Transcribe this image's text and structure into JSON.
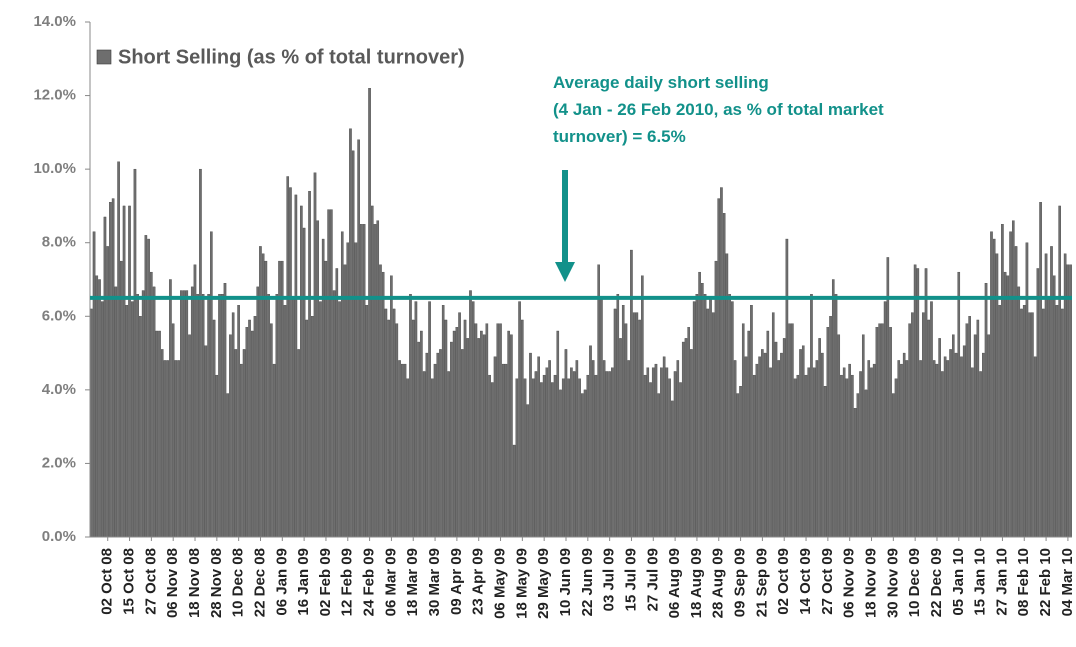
{
  "chart_data": {
    "type": "bar",
    "series": [
      {
        "name": "Short Selling (as % of total turnover)",
        "color": "#6e6e6e",
        "values": [
          6.2,
          8.3,
          7.1,
          7.0,
          6.4,
          8.7,
          7.9,
          9.1,
          9.2,
          6.8,
          10.2,
          7.5,
          9.0,
          6.3,
          9.0,
          6.4,
          10.0,
          6.6,
          6.0,
          6.7,
          8.2,
          8.1,
          7.2,
          6.8,
          5.6,
          5.6,
          5.1,
          4.8,
          4.8,
          7.0,
          5.8,
          4.8,
          4.8,
          6.7,
          6.7,
          6.7,
          5.5,
          6.8,
          7.4,
          6.6,
          10.0,
          6.6,
          5.2,
          6.6,
          8.3,
          5.9,
          4.4,
          6.6,
          6.6,
          6.9,
          3.9,
          5.5,
          6.1,
          5.1,
          6.3,
          4.7,
          5.1,
          5.7,
          5.9,
          5.6,
          6.0,
          6.8,
          7.9,
          7.7,
          7.5,
          6.6,
          5.8,
          4.7,
          6.6,
          7.5,
          7.5,
          6.3,
          9.8,
          9.5,
          6.5,
          9.3,
          5.1,
          9.0,
          8.4,
          5.9,
          9.4,
          6.0,
          9.9,
          8.6,
          6.4,
          8.1,
          7.5,
          8.9,
          8.9,
          6.7,
          7.3,
          6.4,
          8.3,
          7.4,
          8.0,
          11.1,
          10.5,
          8.0,
          10.8,
          8.5,
          8.5,
          6.3,
          12.2,
          9.0,
          8.5,
          8.6,
          7.4,
          7.2,
          6.2,
          5.9,
          7.1,
          6.2,
          5.8,
          4.8,
          4.7,
          4.7,
          4.3,
          6.6,
          5.9,
          6.4,
          5.3,
          5.6,
          4.5,
          5.0,
          6.4,
          4.3,
          4.7,
          5.0,
          5.1,
          6.3,
          5.9,
          4.5,
          5.3,
          5.6,
          5.7,
          6.1,
          5.1,
          5.9,
          5.4,
          6.7,
          6.4,
          5.8,
          5.4,
          5.6,
          5.5,
          5.8,
          4.4,
          4.2,
          4.9,
          5.8,
          5.8,
          4.7,
          4.7,
          5.6,
          5.5,
          2.5,
          4.3,
          6.4,
          5.9,
          4.3,
          3.6,
          5.0,
          4.3,
          4.5,
          4.9,
          4.2,
          4.4,
          4.6,
          4.8,
          4.2,
          4.4,
          5.6,
          4.0,
          4.3,
          5.1,
          4.3,
          4.6,
          4.5,
          4.8,
          4.3,
          3.9,
          4.0,
          4.4,
          5.2,
          4.8,
          4.4,
          7.4,
          6.5,
          4.8,
          4.5,
          4.5,
          4.6,
          6.2,
          6.6,
          5.4,
          6.3,
          5.8,
          4.8,
          7.8,
          6.1,
          6.1,
          5.9,
          7.1,
          4.4,
          4.6,
          4.2,
          4.6,
          4.7,
          3.9,
          4.6,
          4.9,
          4.6,
          4.3,
          3.7,
          4.5,
          4.8,
          4.2,
          5.3,
          5.4,
          5.7,
          5.1,
          6.4,
          6.6,
          7.2,
          6.9,
          6.6,
          6.2,
          6.5,
          6.1,
          7.5,
          9.2,
          9.5,
          8.8,
          7.7,
          6.6,
          6.4,
          4.8,
          3.9,
          4.1,
          5.8,
          4.9,
          5.6,
          6.3,
          4.4,
          4.7,
          4.9,
          5.1,
          5.0,
          5.6,
          4.6,
          6.1,
          5.3,
          4.8,
          5.0,
          5.4,
          8.1,
          5.8,
          5.8,
          4.3,
          4.4,
          5.1,
          5.2,
          4.4,
          4.6,
          6.6,
          4.6,
          4.8,
          5.4,
          5.0,
          4.1,
          5.7,
          6.0,
          7.0,
          6.6,
          5.5,
          4.4,
          4.6,
          4.3,
          4.7,
          4.4,
          3.5,
          3.9,
          4.5,
          5.5,
          4.0,
          4.8,
          4.6,
          4.7,
          5.7,
          5.8,
          5.8,
          6.4,
          7.6,
          5.7,
          3.9,
          4.3,
          4.8,
          4.7,
          5.0,
          4.8,
          5.8,
          6.1,
          7.4,
          7.3,
          4.8,
          6.1,
          7.3,
          5.9,
          6.4,
          4.8,
          4.7,
          5.4,
          4.5,
          4.9,
          4.8,
          5.1,
          5.5,
          5.0,
          7.2,
          4.9,
          5.2,
          5.8,
          6.0,
          4.6,
          5.5,
          5.9,
          4.5,
          5.0,
          6.9,
          5.5,
          8.3,
          8.1,
          7.7,
          6.3,
          8.5,
          7.2,
          7.1,
          8.3,
          8.6,
          7.9,
          6.8,
          6.2,
          6.3,
          8.0,
          6.1,
          6.1,
          4.9,
          7.3,
          9.1,
          6.2,
          7.7,
          6.5,
          7.9,
          7.1,
          6.3,
          9.0,
          6.2,
          7.7,
          7.4,
          7.4
        ]
      }
    ],
    "categories": [
      null,
      null,
      null,
      null,
      null,
      null,
      "02 Oct 08",
      null,
      null,
      null,
      null,
      null,
      null,
      null,
      "15 Oct 08",
      null,
      null,
      null,
      null,
      null,
      null,
      null,
      "27 Oct 08",
      null,
      null,
      null,
      null,
      null,
      null,
      null,
      "06 Nov 08",
      null,
      null,
      null,
      null,
      null,
      null,
      null,
      "18 Nov 08",
      null,
      null,
      null,
      null,
      null,
      null,
      null,
      "28 Nov 08",
      null,
      null,
      null,
      null,
      null,
      null,
      null,
      "10 Dec 08",
      null,
      null,
      null,
      null,
      null,
      null,
      null,
      "22 Dec 08",
      null,
      null,
      null,
      null,
      null,
      null,
      null,
      "06 Jan 09",
      null,
      null,
      null,
      null,
      null,
      null,
      null,
      "16 Jan 09",
      null,
      null,
      null,
      null,
      null,
      null,
      null,
      "02 Feb 09",
      null,
      null,
      null,
      null,
      null,
      null,
      null,
      "12 Feb 09",
      null,
      null,
      null,
      null,
      null,
      null,
      null,
      "24 Feb 09",
      null,
      null,
      null,
      null,
      null,
      null,
      null,
      "06 Mar 09",
      null,
      null,
      null,
      null,
      null,
      null,
      null,
      "18 Mar 09",
      null,
      null,
      null,
      null,
      null,
      null,
      null,
      "30 Mar 09",
      null,
      null,
      null,
      null,
      null,
      null,
      null,
      "09 Apr 09",
      null,
      null,
      null,
      null,
      null,
      null,
      null,
      "23 Apr 09",
      null,
      null,
      null,
      null,
      null,
      null,
      null,
      "06 May 09",
      null,
      null,
      null,
      null,
      null,
      null,
      null,
      "18 May 09",
      null,
      null,
      null,
      null,
      null,
      null,
      null,
      "29 May 09",
      null,
      null,
      null,
      null,
      null,
      null,
      null,
      "10 Jun 09",
      null,
      null,
      null,
      null,
      null,
      null,
      null,
      "22 Jun 09",
      null,
      null,
      null,
      null,
      null,
      null,
      null,
      "03 Jul 09",
      null,
      null,
      null,
      null,
      null,
      null,
      null,
      "15 Jul 09",
      null,
      null,
      null,
      null,
      null,
      null,
      null,
      "27 Jul 09",
      null,
      null,
      null,
      null,
      null,
      null,
      null,
      "06 Aug 09",
      null,
      null,
      null,
      null,
      null,
      null,
      null,
      "18 Aug 09",
      null,
      null,
      null,
      null,
      null,
      null,
      null,
      "28 Aug 09",
      null,
      null,
      null,
      null,
      null,
      null,
      null,
      "09 Sep 09",
      null,
      null,
      null,
      null,
      null,
      null,
      null,
      "21 Sep 09",
      null,
      null,
      null,
      null,
      null,
      null,
      null,
      "02 Oct 09",
      null,
      null,
      null,
      null,
      null,
      null,
      null,
      "14 Oct 09",
      null,
      null,
      null,
      null,
      null,
      null,
      null,
      "27 Oct 09",
      null,
      null,
      null,
      null,
      null,
      null,
      null,
      "06 Nov 09",
      null,
      null,
      null,
      null,
      null,
      null,
      null,
      "18 Nov 09",
      null,
      null,
      null,
      null,
      null,
      null,
      null,
      "30 Nov 09",
      null,
      null,
      null,
      null,
      null,
      null,
      null,
      "10 Dec 09",
      null,
      null,
      null,
      null,
      null,
      null,
      null,
      "22 Dec 09",
      null,
      null,
      null,
      null,
      null,
      null,
      null,
      "05 Jan 10",
      null,
      null,
      null,
      null,
      null,
      null,
      null,
      "15 Jan 10",
      null,
      null,
      null,
      null,
      null,
      null,
      null,
      "27 Jan 10",
      null,
      null,
      null,
      null,
      null,
      null,
      null,
      "08 Feb 10",
      null,
      null,
      null,
      null,
      null,
      null,
      null,
      "22 Feb 10",
      null,
      null,
      null,
      null,
      null,
      null,
      null,
      "04 Mar 10",
      null
    ],
    "average": 6.5,
    "average_color": "#12918a",
    "annotation": [
      "Average daily short selling",
      "(4 Jan - 26 Feb 2010, as % of total market",
      "turnover) = 6.5%"
    ],
    "ylim": [
      0,
      14
    ],
    "yticks": [
      {
        "value": 0,
        "label": "0.0%"
      },
      {
        "value": 2,
        "label": "2.0%"
      },
      {
        "value": 4,
        "label": "4.0%"
      },
      {
        "value": 6,
        "label": "6.0%"
      },
      {
        "value": 8,
        "label": "8.0%"
      },
      {
        "value": 10,
        "label": "10.0%"
      },
      {
        "value": 12,
        "label": "12.0%"
      },
      {
        "value": 14,
        "label": "14.0%"
      }
    ],
    "grid": false,
    "legend": "upper left"
  }
}
